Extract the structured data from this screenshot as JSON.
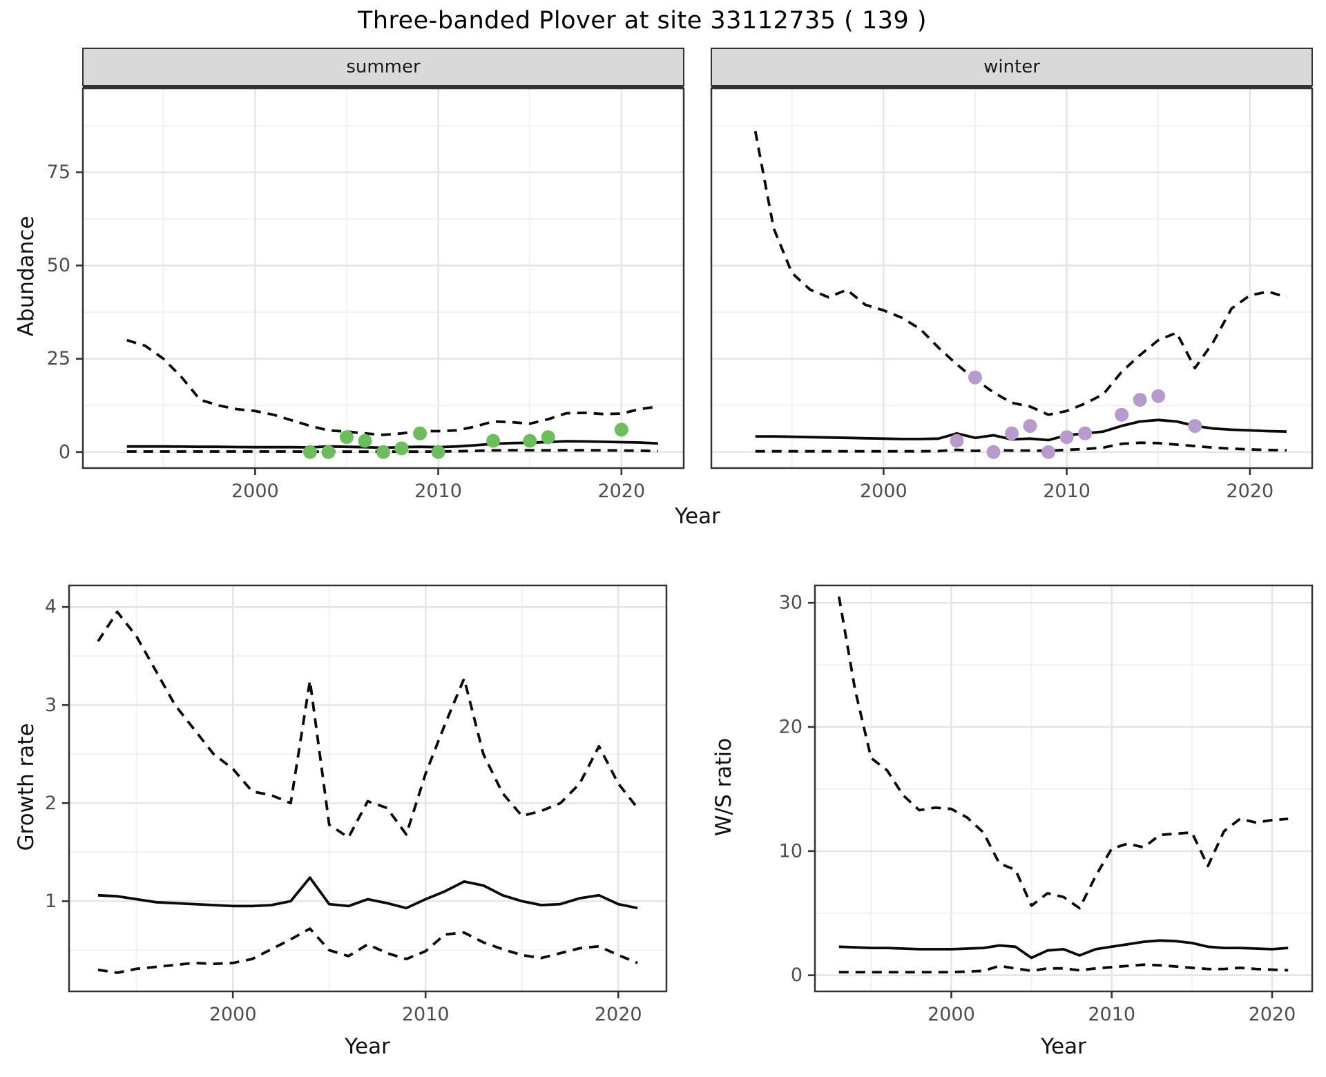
{
  "page_title": "Three-banded Plover at site 33112735 ( 139 )",
  "axis_labels": {
    "x": "Year",
    "abundance": "Abundance",
    "growth": "Growth rate",
    "ratio": "W/S ratio"
  },
  "colors": {
    "summer_point": "#6cbe5c",
    "winter_point": "#b89bce",
    "line": "#0a0a0a",
    "strip_bg": "#d9d9d9",
    "strip_text": "#1a1a1a",
    "panel_border": "#333333",
    "grid_major": "#e4e4e4",
    "grid_minor": "#f0f0f0",
    "tick_text": "#4d4d4d"
  },
  "chart_data": [
    {
      "type": "line",
      "name": "abundance_by_season",
      "ylabel": "Abundance",
      "xlabel": "Year",
      "ylim": [
        -4.3,
        97.5
      ],
      "yticks": [
        0,
        25,
        50,
        75
      ],
      "yminor": [
        12.5,
        37.5,
        62.5,
        87.5
      ],
      "xlim": [
        1990.6,
        2023.4
      ],
      "xticks": [
        2000,
        2010,
        2020
      ],
      "xminor": [
        1995,
        2005,
        2015
      ],
      "x": [
        1993,
        1994,
        1995,
        1996,
        1997,
        1998,
        1999,
        2000,
        2001,
        2002,
        2003,
        2004,
        2005,
        2006,
        2007,
        2008,
        2009,
        2010,
        2011,
        2012,
        2013,
        2014,
        2015,
        2016,
        2017,
        2018,
        2019,
        2020,
        2021,
        2022
      ],
      "facets": [
        {
          "label": "summer",
          "series": [
            {
              "name": "upper_95ci",
              "style": "dashed",
              "values": [
                30,
                28.5,
                25,
                20,
                14,
                12.5,
                11.5,
                11,
                10,
                8.5,
                7,
                5.8,
                5.5,
                5,
                4.6,
                5,
                5.6,
                5.6,
                5.8,
                6.8,
                8.2,
                8,
                7.6,
                8.8,
                10.4,
                10.5,
                10.2,
                10.3,
                11.5,
                12.2
              ]
            },
            {
              "name": "median",
              "style": "solid",
              "values": [
                1.5,
                1.5,
                1.5,
                1.45,
                1.4,
                1.4,
                1.35,
                1.3,
                1.3,
                1.3,
                1.25,
                1.5,
                1.4,
                1.3,
                1.15,
                1.3,
                1.4,
                1.3,
                1.5,
                1.8,
                2.2,
                2.4,
                2.5,
                2.7,
                2.9,
                2.85,
                2.75,
                2.65,
                2.55,
                2.3
              ]
            },
            {
              "name": "lower_95ci",
              "style": "dashed",
              "values": [
                0.15,
                0.15,
                0.15,
                0.15,
                0.15,
                0.15,
                0.15,
                0.15,
                0.15,
                0.15,
                0.1,
                0.1,
                0.1,
                0.1,
                0.1,
                0.1,
                0.1,
                0.15,
                0.2,
                0.3,
                0.45,
                0.5,
                0.5,
                0.45,
                0.5,
                0.5,
                0.45,
                0.4,
                0.35,
                0.25
              ]
            }
          ],
          "observed_points": {
            "color_key": "summer_point",
            "data": [
              [
                2003,
                0
              ],
              [
                2004,
                0
              ],
              [
                2005,
                4
              ],
              [
                2006,
                3
              ],
              [
                2007,
                0
              ],
              [
                2008,
                1
              ],
              [
                2009,
                5
              ],
              [
                2010,
                0
              ],
              [
                2013,
                3
              ],
              [
                2015,
                3
              ],
              [
                2016,
                4
              ],
              [
                2020,
                6
              ]
            ]
          }
        },
        {
          "label": "winter",
          "series": [
            {
              "name": "upper_95ci",
              "style": "dashed",
              "values": [
                86,
                60,
                48,
                43.5,
                41.5,
                43.5,
                39.5,
                38,
                36,
                33,
                28,
                23.5,
                19.5,
                16,
                13.2,
                12.2,
                10,
                11,
                13,
                15.5,
                21.5,
                26,
                30,
                32,
                22.5,
                29.5,
                38.5,
                42,
                43,
                41.5
              ]
            },
            {
              "name": "median",
              "style": "solid",
              "values": [
                4.2,
                4.2,
                4.1,
                4.0,
                3.9,
                3.8,
                3.7,
                3.6,
                3.5,
                3.5,
                3.6,
                5.0,
                3.8,
                4.5,
                3.4,
                3.6,
                3.2,
                4.5,
                5.0,
                5.5,
                7.0,
                8.2,
                8.6,
                8.2,
                7.0,
                6.3,
                6.0,
                5.8,
                5.6,
                5.5
              ]
            },
            {
              "name": "lower_95ci",
              "style": "dashed",
              "values": [
                0.2,
                0.2,
                0.2,
                0.2,
                0.2,
                0.2,
                0.2,
                0.2,
                0.2,
                0.2,
                0.25,
                0.6,
                0.3,
                0.5,
                0.4,
                0.4,
                0.3,
                0.6,
                0.8,
                1.2,
                2.2,
                2.5,
                2.4,
                2.0,
                1.6,
                1.2,
                0.9,
                0.7,
                0.55,
                0.45
              ]
            }
          ],
          "observed_points": {
            "color_key": "winter_point",
            "data": [
              [
                2004,
                3
              ],
              [
                2005,
                20
              ],
              [
                2006,
                0
              ],
              [
                2007,
                5
              ],
              [
                2008,
                7
              ],
              [
                2009,
                0
              ],
              [
                2010,
                4
              ],
              [
                2011,
                5
              ],
              [
                2013,
                10
              ],
              [
                2014,
                14
              ],
              [
                2015,
                15
              ],
              [
                2017,
                7
              ]
            ]
          }
        }
      ]
    },
    {
      "type": "line",
      "name": "growth_rate",
      "ylabel": "Growth rate",
      "xlabel": "Year",
      "ylim": [
        0.08,
        4.22
      ],
      "yticks": [
        1,
        2,
        3,
        4
      ],
      "yminor": [
        0.5,
        1.5,
        2.5,
        3.5
      ],
      "xlim": [
        1991.5,
        2022.5
      ],
      "xticks": [
        2000,
        2010,
        2020
      ],
      "xminor": [
        1995,
        2005,
        2015
      ],
      "x": [
        1993,
        1994,
        1995,
        1996,
        1997,
        1998,
        1999,
        2000,
        2001,
        2002,
        2003,
        2004,
        2005,
        2006,
        2007,
        2008,
        2009,
        2010,
        2011,
        2012,
        2013,
        2014,
        2015,
        2016,
        2017,
        2018,
        2019,
        2020,
        2021
      ],
      "facets": [
        {
          "label": null,
          "series": [
            {
              "name": "upper_95ci",
              "style": "dashed",
              "values": [
                3.65,
                3.95,
                3.7,
                3.35,
                3.0,
                2.75,
                2.5,
                2.35,
                2.12,
                2.08,
                2.0,
                3.25,
                1.78,
                1.65,
                2.02,
                1.95,
                1.68,
                2.3,
                2.8,
                3.27,
                2.5,
                2.1,
                1.87,
                1.92,
                2.0,
                2.2,
                2.58,
                2.2,
                1.95
              ]
            },
            {
              "name": "median",
              "style": "solid",
              "values": [
                1.06,
                1.05,
                1.02,
                0.99,
                0.98,
                0.97,
                0.96,
                0.95,
                0.95,
                0.96,
                1.0,
                1.24,
                0.97,
                0.95,
                1.02,
                0.98,
                0.93,
                1.02,
                1.1,
                1.2,
                1.16,
                1.06,
                1.0,
                0.96,
                0.97,
                1.03,
                1.06,
                0.97,
                0.93
              ]
            },
            {
              "name": "lower_95ci",
              "style": "dashed",
              "values": [
                0.3,
                0.27,
                0.31,
                0.33,
                0.35,
                0.37,
                0.36,
                0.37,
                0.41,
                0.51,
                0.61,
                0.72,
                0.5,
                0.44,
                0.56,
                0.47,
                0.41,
                0.49,
                0.66,
                0.68,
                0.58,
                0.51,
                0.45,
                0.42,
                0.47,
                0.52,
                0.54,
                0.45,
                0.37
              ]
            }
          ]
        }
      ]
    },
    {
      "type": "line",
      "name": "winter_summer_ratio",
      "ylabel": "W/S ratio",
      "xlabel": "Year",
      "ylim": [
        -1.3,
        31.4
      ],
      "yticks": [
        0,
        10,
        20,
        30
      ],
      "yminor": [
        5,
        15,
        25
      ],
      "xlim": [
        1991.5,
        2022.5
      ],
      "xticks": [
        2000,
        2010,
        2020
      ],
      "xminor": [
        1995,
        2005,
        2015
      ],
      "x": [
        1993,
        1994,
        1995,
        1996,
        1997,
        1998,
        1999,
        2000,
        2001,
        2002,
        2003,
        2004,
        2005,
        2006,
        2007,
        2008,
        2009,
        2010,
        2011,
        2012,
        2013,
        2014,
        2015,
        2016,
        2017,
        2018,
        2019,
        2020,
        2021
      ],
      "facets": [
        {
          "label": null,
          "series": [
            {
              "name": "upper_95ci",
              "style": "dashed",
              "values": [
                30.5,
                23,
                17.5,
                16.5,
                14.5,
                13.3,
                13.5,
                13.4,
                12.7,
                11.5,
                9.0,
                8.5,
                5.6,
                6.6,
                6.3,
                5.4,
                8.0,
                10.2,
                10.6,
                10.3,
                11.3,
                11.4,
                11.5,
                8.8,
                11.6,
                12.6,
                12.3,
                12.5,
                12.6
              ]
            },
            {
              "name": "median",
              "style": "solid",
              "values": [
                2.3,
                2.25,
                2.2,
                2.2,
                2.15,
                2.1,
                2.1,
                2.1,
                2.15,
                2.2,
                2.4,
                2.3,
                1.4,
                2.0,
                2.1,
                1.6,
                2.1,
                2.3,
                2.5,
                2.7,
                2.8,
                2.75,
                2.6,
                2.3,
                2.2,
                2.2,
                2.15,
                2.1,
                2.2
              ]
            },
            {
              "name": "lower_95ci",
              "style": "dashed",
              "values": [
                0.25,
                0.25,
                0.25,
                0.25,
                0.25,
                0.25,
                0.25,
                0.25,
                0.3,
                0.35,
                0.75,
                0.55,
                0.35,
                0.55,
                0.55,
                0.4,
                0.55,
                0.65,
                0.75,
                0.85,
                0.8,
                0.7,
                0.6,
                0.5,
                0.5,
                0.6,
                0.5,
                0.45,
                0.4
              ]
            }
          ]
        }
      ]
    }
  ]
}
